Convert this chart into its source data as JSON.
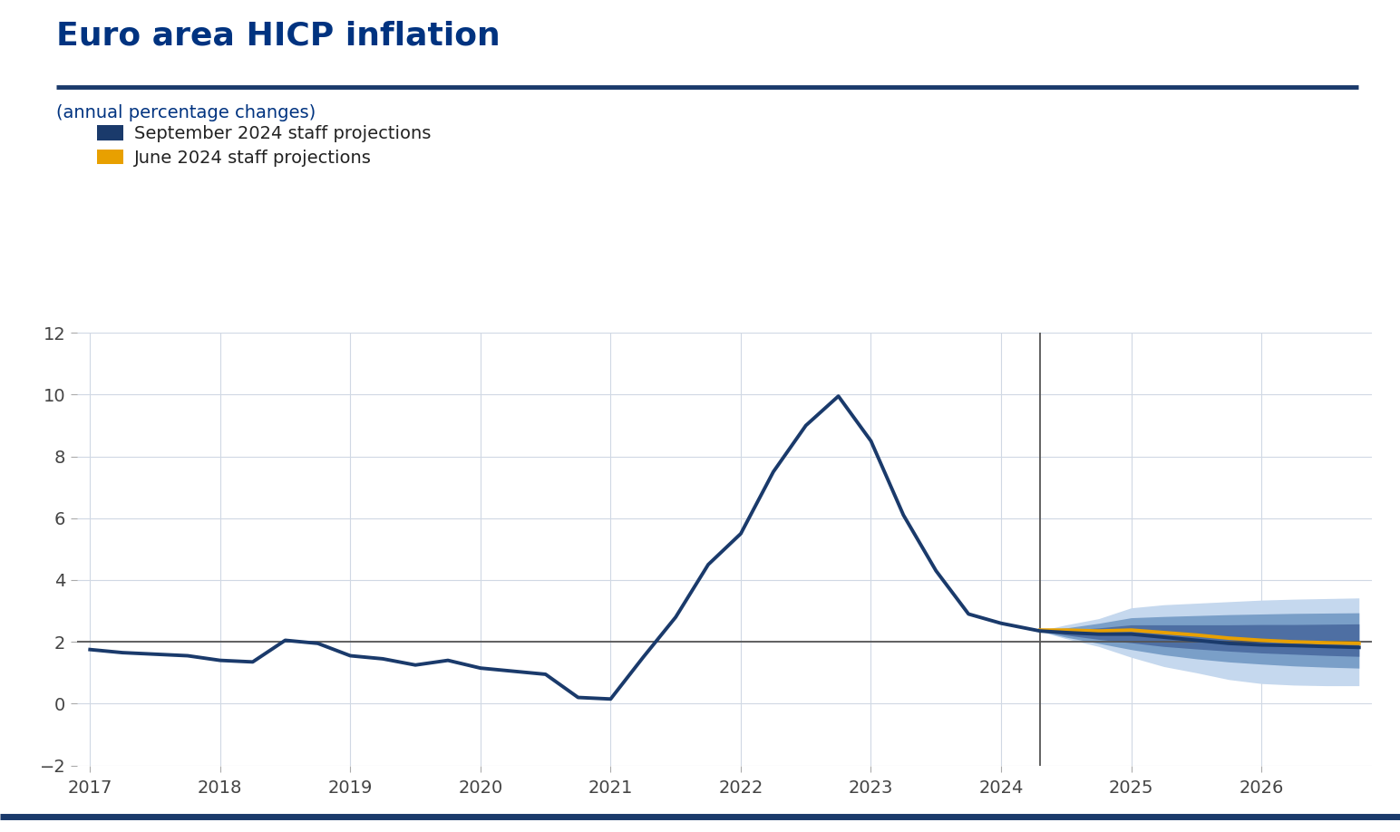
{
  "title": "Euro area HICP inflation",
  "subtitle": "(annual percentage changes)",
  "legend": [
    "September 2024 staff projections",
    "June 2024 staff projections"
  ],
  "title_color": "#003380",
  "subtitle_color": "#003380",
  "background_color": "#ffffff",
  "line_color_sep": "#1a3a6b",
  "line_color_jun": "#e8a000",
  "vline_x": 2024.3,
  "hline_y": 2.0,
  "xlim": [
    2016.9,
    2026.85
  ],
  "ylim": [
    -2,
    12
  ],
  "yticks": [
    -2,
    0,
    2,
    4,
    6,
    8,
    10,
    12
  ],
  "xticks": [
    2017,
    2018,
    2019,
    2020,
    2021,
    2022,
    2023,
    2024,
    2025,
    2026
  ],
  "historical_x": [
    2017.0,
    2017.25,
    2017.5,
    2017.75,
    2018.0,
    2018.25,
    2018.5,
    2018.75,
    2019.0,
    2019.25,
    2019.5,
    2019.75,
    2020.0,
    2020.25,
    2020.5,
    2020.75,
    2021.0,
    2021.25,
    2021.5,
    2021.75,
    2022.0,
    2022.25,
    2022.5,
    2022.75,
    2023.0,
    2023.25,
    2023.5,
    2023.75,
    2024.0,
    2024.3
  ],
  "historical_y": [
    1.75,
    1.65,
    1.6,
    1.55,
    1.4,
    1.35,
    2.05,
    1.95,
    1.55,
    1.45,
    1.25,
    1.4,
    1.15,
    1.05,
    0.95,
    0.2,
    0.15,
    1.5,
    2.8,
    4.5,
    5.5,
    7.5,
    9.0,
    9.95,
    8.5,
    6.1,
    4.3,
    2.9,
    2.6,
    2.35
  ],
  "sep_proj_x": [
    2024.3,
    2024.5,
    2024.75,
    2025.0,
    2025.25,
    2025.5,
    2025.75,
    2026.0,
    2026.25,
    2026.5,
    2026.75
  ],
  "sep_proj_y": [
    2.35,
    2.3,
    2.25,
    2.25,
    2.15,
    2.05,
    1.95,
    1.9,
    1.88,
    1.85,
    1.82
  ],
  "jun_proj_x": [
    2024.3,
    2024.5,
    2024.75,
    2025.0,
    2025.25,
    2025.5,
    2025.75,
    2026.0,
    2026.25,
    2026.5,
    2026.75
  ],
  "jun_proj_y": [
    2.38,
    2.38,
    2.35,
    2.38,
    2.3,
    2.22,
    2.12,
    2.05,
    2.0,
    1.97,
    1.95
  ],
  "band1_upper": [
    2.36,
    2.55,
    2.75,
    3.1,
    3.2,
    3.25,
    3.3,
    3.35,
    3.38,
    3.4,
    3.42
  ],
  "band1_lower": [
    2.34,
    2.1,
    1.85,
    1.5,
    1.2,
    1.0,
    0.78,
    0.65,
    0.6,
    0.58,
    0.58
  ],
  "band2_upper": [
    2.355,
    2.45,
    2.6,
    2.78,
    2.82,
    2.85,
    2.88,
    2.9,
    2.92,
    2.93,
    2.94
  ],
  "band2_lower": [
    2.345,
    2.15,
    1.95,
    1.75,
    1.58,
    1.45,
    1.35,
    1.28,
    1.22,
    1.18,
    1.15
  ],
  "band3_upper": [
    2.352,
    2.38,
    2.45,
    2.55,
    2.55,
    2.55,
    2.55,
    2.56,
    2.56,
    2.57,
    2.58
  ],
  "band3_lower": [
    2.348,
    2.22,
    2.08,
    1.97,
    1.85,
    1.77,
    1.7,
    1.64,
    1.6,
    1.56,
    1.53
  ]
}
